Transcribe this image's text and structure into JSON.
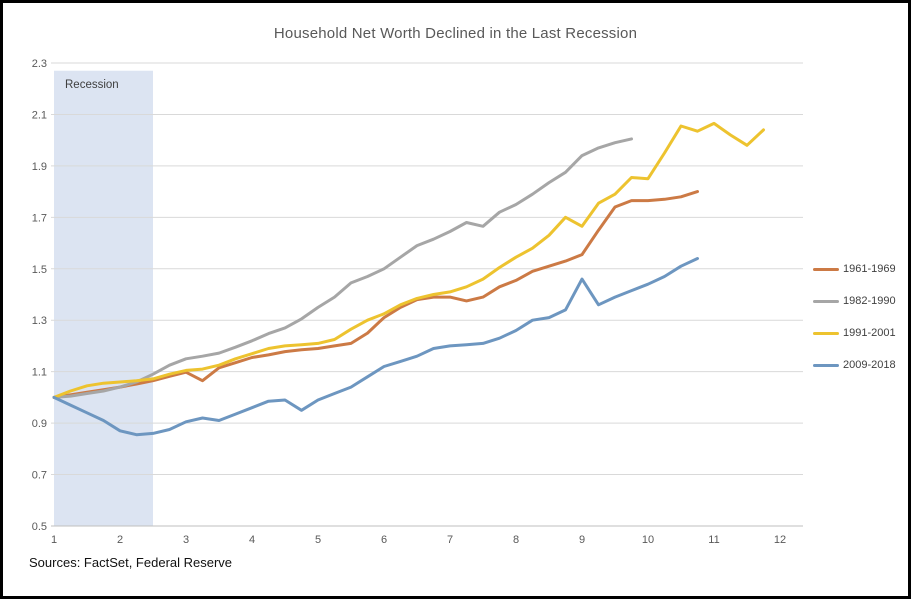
{
  "title": "Household Net Worth Declined in the Last Recession",
  "source_note": "Sources: FactSet, Federal Reserve",
  "colors": {
    "title_text": "#595959",
    "tick_text": "#595959",
    "legend_text": "#404040",
    "gridline": "#D9D9D9",
    "axis_line": "#BFBFBF",
    "recession_band": "#DCE4F2",
    "background": "#FFFFFF",
    "border": "#000000"
  },
  "chart_data": {
    "type": "line",
    "title": "Household Net Worth Declined in the Last Recession",
    "xlabel": "",
    "ylabel": "",
    "x_axis": {
      "tick_labels": [
        "1",
        "2",
        "3",
        "4",
        "5",
        "6",
        "7",
        "8",
        "9",
        "10",
        "11",
        "12"
      ],
      "range": [
        1,
        12.35
      ]
    },
    "y_axis": {
      "tick_labels": [
        "0.5",
        "0.7",
        "0.9",
        "1.1",
        "1.3",
        "1.5",
        "1.7",
        "1.9",
        "2.1",
        "2.3"
      ],
      "ticks": [
        0.5,
        0.7,
        0.9,
        1.1,
        1.3,
        1.5,
        1.7,
        1.9,
        2.1,
        2.3
      ],
      "range": [
        0.5,
        2.3
      ]
    },
    "grid": true,
    "legend_position": "right",
    "recession_band": {
      "label": "Recession",
      "x_start": 1,
      "x_end": 2.5,
      "y_top": 2.27
    },
    "x_step": 0.25,
    "series": [
      {
        "name": "1961-1969",
        "color": "#CC7A45",
        "x_start": 1,
        "values": [
          1.0,
          1.01,
          1.02,
          1.03,
          1.04,
          1.052,
          1.065,
          1.082,
          1.098,
          1.065,
          1.115,
          1.135,
          1.155,
          1.165,
          1.178,
          1.185,
          1.19,
          1.2,
          1.21,
          1.25,
          1.31,
          1.35,
          1.38,
          1.39,
          1.39,
          1.375,
          1.39,
          1.43,
          1.455,
          1.49,
          1.51,
          1.53,
          1.555,
          1.65,
          1.74,
          1.765,
          1.765,
          1.77,
          1.78,
          1.8
        ]
      },
      {
        "name": "1982-1990",
        "color": "#A6A6A6",
        "x_start": 1,
        "values": [
          1.0,
          1.005,
          1.015,
          1.025,
          1.04,
          1.06,
          1.09,
          1.125,
          1.15,
          1.16,
          1.172,
          1.195,
          1.22,
          1.248,
          1.27,
          1.305,
          1.35,
          1.39,
          1.445,
          1.47,
          1.5,
          1.545,
          1.59,
          1.615,
          1.645,
          1.68,
          1.665,
          1.72,
          1.75,
          1.79,
          1.835,
          1.875,
          1.94,
          1.97,
          1.99,
          2.005
        ]
      },
      {
        "name": "1991-2001",
        "color": "#EDC32F",
        "x_start": 1,
        "values": [
          1.0,
          1.025,
          1.045,
          1.055,
          1.06,
          1.065,
          1.072,
          1.09,
          1.105,
          1.11,
          1.125,
          1.15,
          1.17,
          1.19,
          1.2,
          1.205,
          1.21,
          1.225,
          1.265,
          1.3,
          1.325,
          1.36,
          1.385,
          1.4,
          1.41,
          1.43,
          1.46,
          1.505,
          1.545,
          1.58,
          1.63,
          1.7,
          1.665,
          1.755,
          1.79,
          1.855,
          1.85,
          1.95,
          2.055,
          2.035,
          2.065,
          2.02,
          1.98,
          2.04
        ]
      },
      {
        "name": "2009-2018",
        "color": "#6D96C0",
        "x_start": 1,
        "values": [
          1.0,
          0.97,
          0.94,
          0.91,
          0.87,
          0.855,
          0.86,
          0.875,
          0.905,
          0.92,
          0.91,
          0.935,
          0.96,
          0.985,
          0.99,
          0.95,
          0.99,
          1.015,
          1.04,
          1.08,
          1.12,
          1.14,
          1.16,
          1.19,
          1.2,
          1.205,
          1.21,
          1.23,
          1.26,
          1.3,
          1.31,
          1.34,
          1.46,
          1.36,
          1.39,
          1.415,
          1.44,
          1.47,
          1.51,
          1.54
        ]
      }
    ]
  }
}
